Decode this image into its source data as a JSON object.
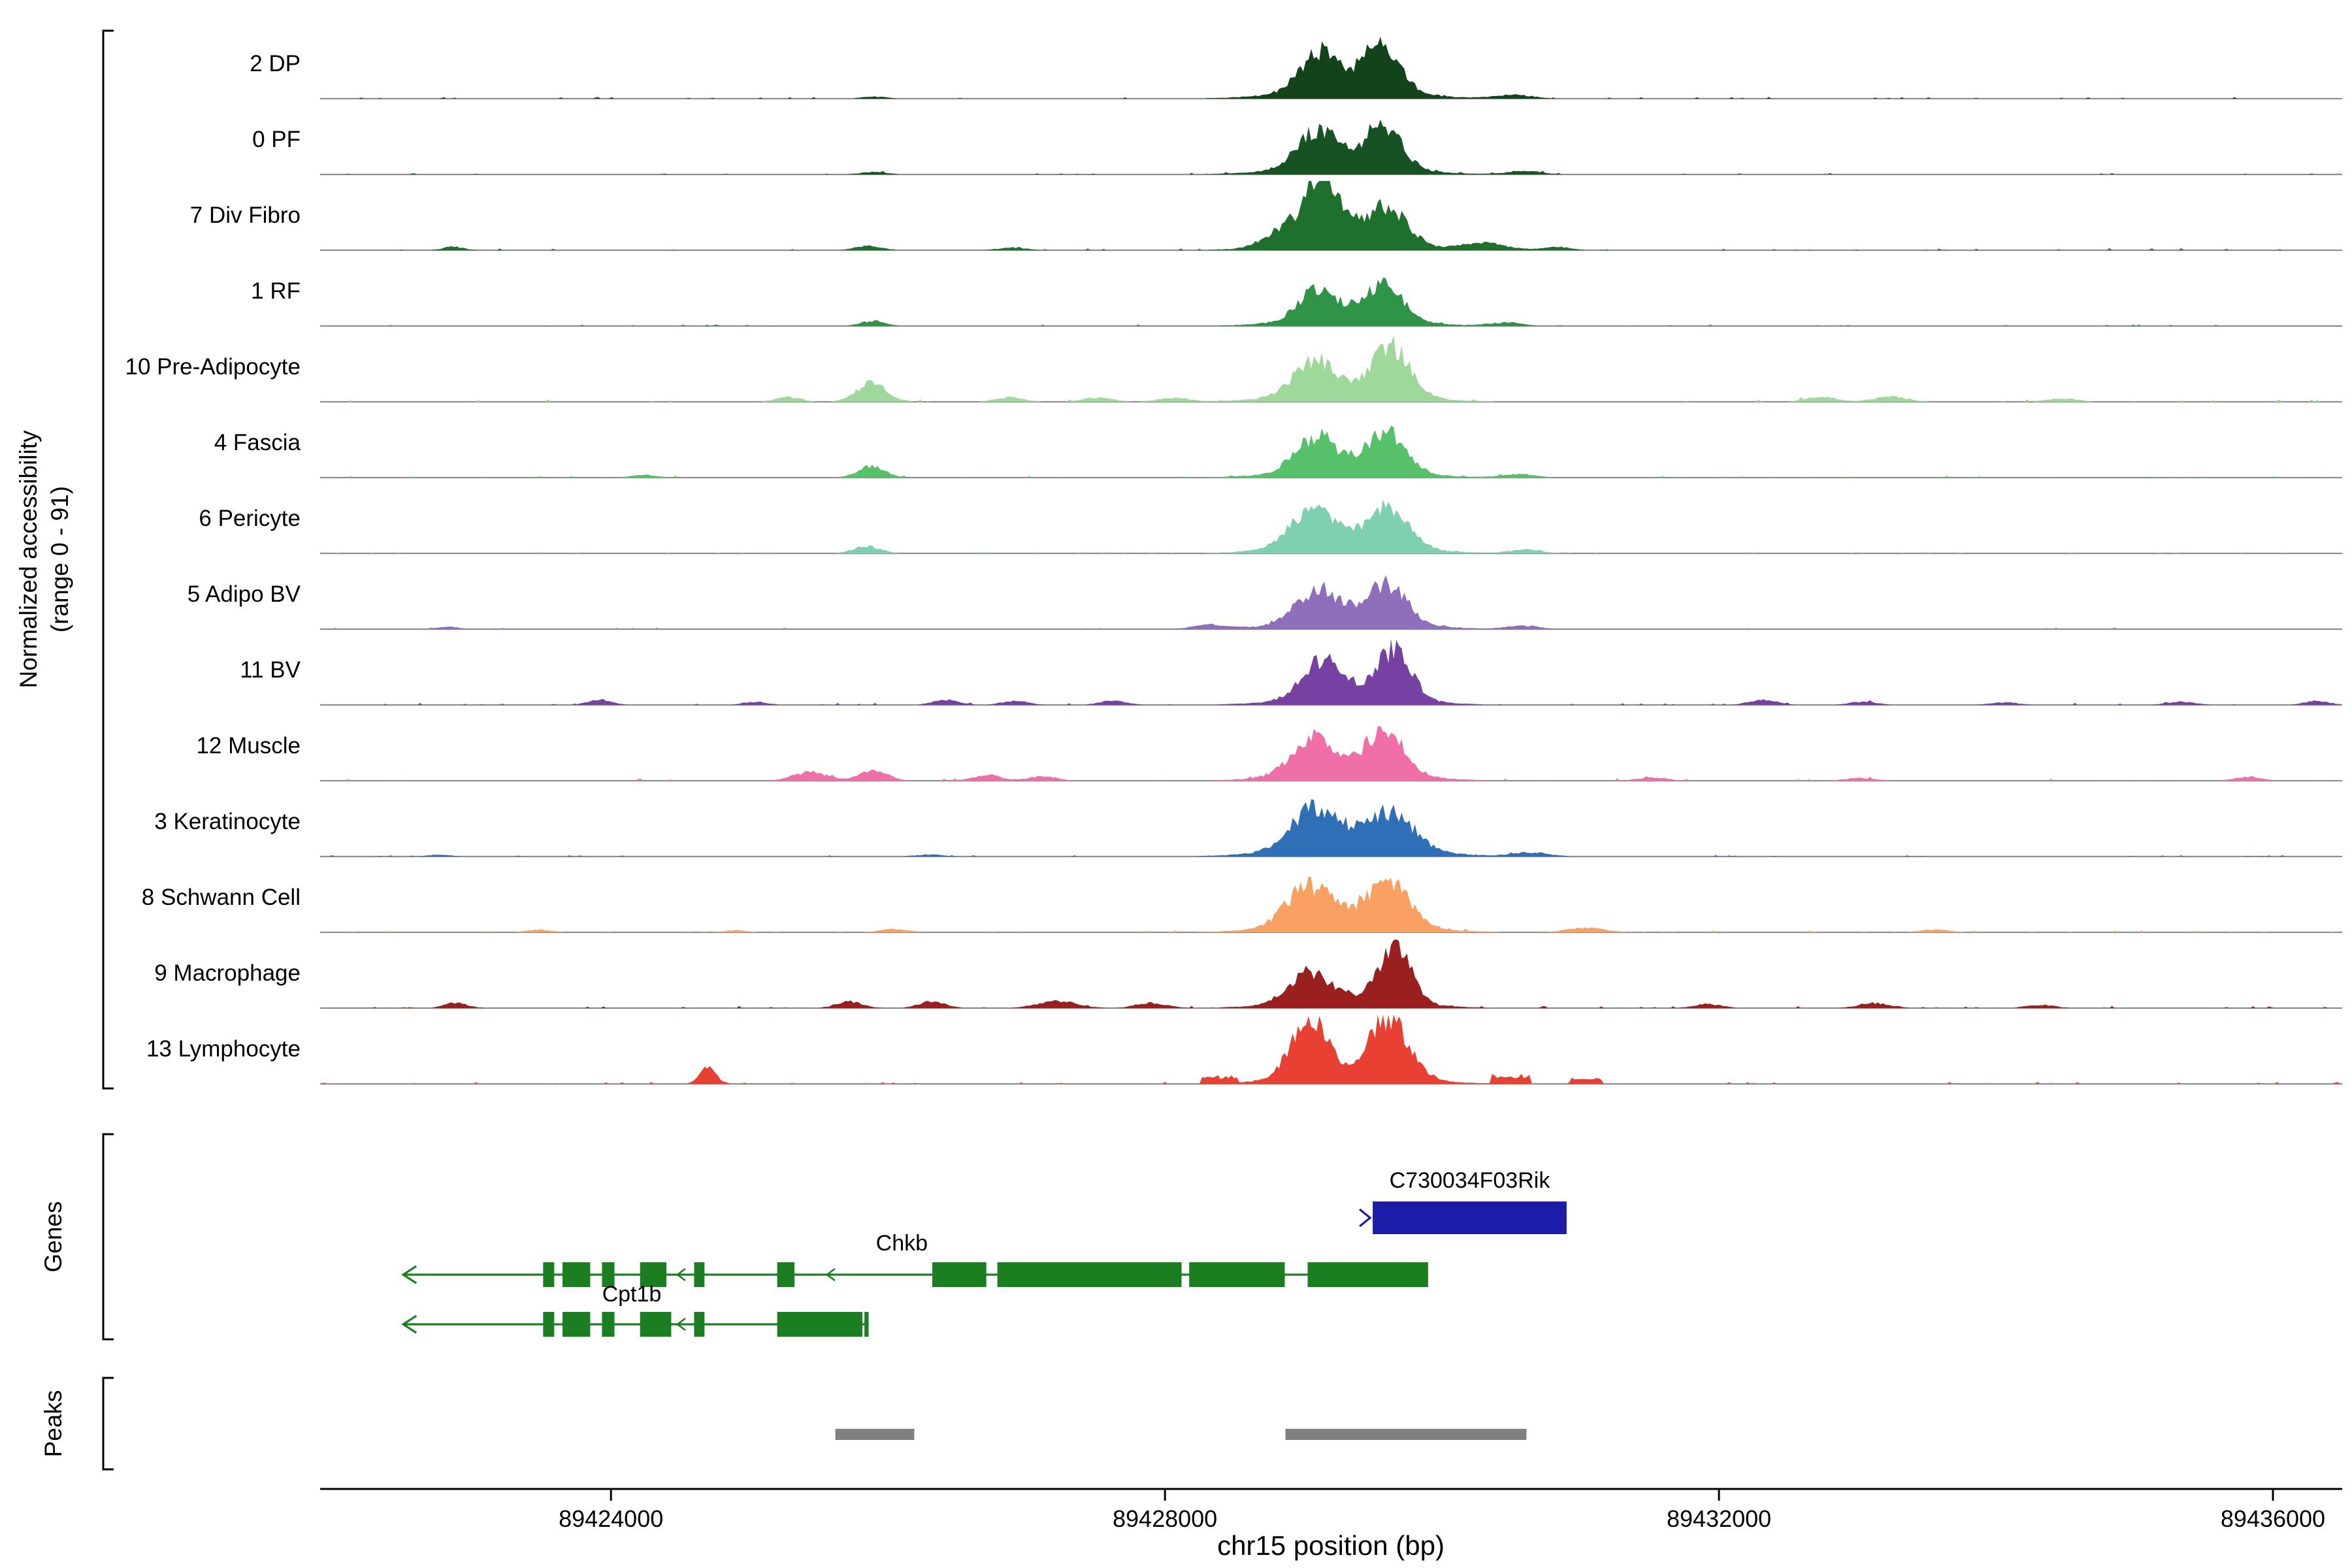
{
  "figure": {
    "y_axis_label_line1": "Normalized accessibility",
    "y_axis_label_line2": "(range 0 - 91)",
    "genes_section_label": "Genes",
    "peaks_section_label": "Peaks",
    "x_axis_title": "chr15 position (bp)"
  },
  "chart_data": {
    "type": "area",
    "title": "",
    "xlabel": "chr15 position (bp)",
    "ylabel": "Normalized accessibility (range 0 - 91)",
    "x_range_bp": [
      89421900,
      89436500
    ],
    "x_ticks_bp": [
      89424000,
      89428000,
      89432000,
      89436000
    ],
    "x_tick_labels": [
      "89424000",
      "89428000",
      "89432000",
      "89436000"
    ],
    "y_range": [
      0,
      91
    ],
    "tracks": [
      {
        "label": "2 DP",
        "color": "#12431b",
        "seed": 1,
        "noise": 0.015,
        "peaks": [
          [
            89429120,
            140,
            0.62
          ],
          [
            89429560,
            130,
            0.72
          ],
          [
            89429320,
            420,
            0.14
          ],
          [
            89430520,
            130,
            0.06
          ],
          [
            89425900,
            90,
            0.03
          ]
        ]
      },
      {
        "label": "0 PF",
        "color": "#175322",
        "seed": 2,
        "noise": 0.013,
        "peaks": [
          [
            89429100,
            140,
            0.58
          ],
          [
            89429570,
            130,
            0.68
          ],
          [
            89429320,
            420,
            0.13
          ],
          [
            89430600,
            120,
            0.05
          ],
          [
            89425900,
            90,
            0.04
          ]
        ]
      },
      {
        "label": "7 Div Fibro",
        "color": "#1f6f2d",
        "seed": 3,
        "noise": 0.018,
        "peaks": [
          [
            89429140,
            115,
            0.97
          ],
          [
            89429600,
            140,
            0.55
          ],
          [
            89428860,
            130,
            0.25
          ],
          [
            89429300,
            380,
            0.2
          ],
          [
            89430300,
            150,
            0.12
          ],
          [
            89430820,
            110,
            0.05
          ],
          [
            89422860,
            80,
            0.05
          ],
          [
            89425860,
            90,
            0.07
          ],
          [
            89426900,
            100,
            0.04
          ]
        ]
      },
      {
        "label": "1 RF",
        "color": "#2f9348",
        "seed": 4,
        "noise": 0.014,
        "peaks": [
          [
            89429110,
            140,
            0.46
          ],
          [
            89429580,
            135,
            0.55
          ],
          [
            89429330,
            400,
            0.12
          ],
          [
            89430450,
            120,
            0.05
          ],
          [
            89425890,
            85,
            0.08
          ]
        ]
      },
      {
        "label": "10 Pre-Adipocyte",
        "color": "#9fd89b",
        "seed": 5,
        "noise": 0.022,
        "peaks": [
          [
            89429080,
            150,
            0.5
          ],
          [
            89429630,
            130,
            0.74
          ],
          [
            89429340,
            420,
            0.15
          ],
          [
            89425880,
            110,
            0.28
          ],
          [
            89425280,
            90,
            0.07
          ],
          [
            89426880,
            100,
            0.07
          ],
          [
            89427520,
            110,
            0.06
          ],
          [
            89428060,
            110,
            0.06
          ],
          [
            89432740,
            110,
            0.07
          ],
          [
            89433240,
            120,
            0.08
          ],
          [
            89434480,
            110,
            0.05
          ]
        ]
      },
      {
        "label": "4 Fascia",
        "color": "#56c06a",
        "seed": 6,
        "noise": 0.015,
        "peaks": [
          [
            89429090,
            145,
            0.52
          ],
          [
            89429600,
            135,
            0.62
          ],
          [
            89429330,
            410,
            0.14
          ],
          [
            89425880,
            95,
            0.17
          ],
          [
            89424240,
            90,
            0.04
          ],
          [
            89430560,
            120,
            0.05
          ]
        ]
      },
      {
        "label": "6 Pericyte",
        "color": "#7fd0b0",
        "seed": 7,
        "noise": 0.014,
        "peaks": [
          [
            89429070,
            160,
            0.56
          ],
          [
            89429610,
            140,
            0.6
          ],
          [
            89429330,
            420,
            0.15
          ],
          [
            89425850,
            95,
            0.11
          ],
          [
            89430600,
            120,
            0.05
          ]
        ]
      },
      {
        "label": "5 Adipo BV",
        "color": "#8f6fbb",
        "seed": 8,
        "noise": 0.013,
        "peaks": [
          [
            89429100,
            150,
            0.5
          ],
          [
            89429600,
            140,
            0.58
          ],
          [
            89429340,
            420,
            0.14
          ],
          [
            89428320,
            120,
            0.06
          ],
          [
            89422820,
            80,
            0.04
          ],
          [
            89430580,
            120,
            0.05
          ]
        ]
      },
      {
        "label": "11 BV",
        "color": "#7741a3",
        "seed": 9,
        "noise": 0.02,
        "peaks": [
          [
            89429140,
            145,
            0.55
          ],
          [
            89429650,
            125,
            0.72
          ],
          [
            89429350,
            400,
            0.15
          ],
          [
            89423920,
            85,
            0.08
          ],
          [
            89425040,
            85,
            0.05
          ],
          [
            89426420,
            95,
            0.08
          ],
          [
            89426920,
            95,
            0.06
          ],
          [
            89427620,
            100,
            0.06
          ],
          [
            89432320,
            100,
            0.08
          ],
          [
            89433040,
            100,
            0.05
          ],
          [
            89434060,
            100,
            0.04
          ],
          [
            89435340,
            100,
            0.05
          ],
          [
            89436320,
            90,
            0.06
          ]
        ]
      },
      {
        "label": "12 Muscle",
        "color": "#f06fa9",
        "seed": 10,
        "noise": 0.02,
        "peaks": [
          [
            89429070,
            150,
            0.55
          ],
          [
            89429590,
            135,
            0.66
          ],
          [
            89429330,
            410,
            0.15
          ],
          [
            89425440,
            120,
            0.13
          ],
          [
            89425900,
            100,
            0.16
          ],
          [
            89426720,
            100,
            0.09
          ],
          [
            89427120,
            100,
            0.07
          ],
          [
            89431520,
            110,
            0.05
          ],
          [
            89433020,
            110,
            0.04
          ],
          [
            89435820,
            100,
            0.06
          ]
        ]
      },
      {
        "label": "3 Keratinocyte",
        "color": "#2f6fb7",
        "seed": 11,
        "noise": 0.015,
        "peaks": [
          [
            89429090,
            170,
            0.62
          ],
          [
            89429630,
            160,
            0.55
          ],
          [
            89429360,
            450,
            0.17
          ],
          [
            89430640,
            130,
            0.06
          ],
          [
            89422760,
            80,
            0.03
          ],
          [
            89426300,
            100,
            0.03
          ]
        ]
      },
      {
        "label": "8 Schwann Cell",
        "color": "#f9a163",
        "seed": 12,
        "noise": 0.017,
        "peaks": [
          [
            89429040,
            160,
            0.6
          ],
          [
            89429610,
            150,
            0.67
          ],
          [
            89429330,
            430,
            0.15
          ],
          [
            89431040,
            130,
            0.07
          ],
          [
            89423480,
            90,
            0.04
          ],
          [
            89426040,
            100,
            0.05
          ],
          [
            89433560,
            110,
            0.04
          ],
          [
            89424900,
            90,
            0.03
          ]
        ]
      },
      {
        "label": "9 Macrophage",
        "color": "#9a1f1f",
        "seed": 13,
        "noise": 0.022,
        "peaks": [
          [
            89429040,
            145,
            0.46
          ],
          [
            89429660,
            110,
            0.88
          ],
          [
            89429340,
            400,
            0.15
          ],
          [
            89422880,
            85,
            0.08
          ],
          [
            89425720,
            95,
            0.1
          ],
          [
            89426320,
            95,
            0.1
          ],
          [
            89427220,
            140,
            0.11
          ],
          [
            89427900,
            110,
            0.08
          ],
          [
            89431920,
            100,
            0.06
          ],
          [
            89433120,
            110,
            0.08
          ],
          [
            89434320,
            100,
            0.05
          ]
        ]
      },
      {
        "label": "13 Lymphocyte",
        "color": "#e84133",
        "seed": 14,
        "noise": 0.02,
        "peaks": [
          [
            89429040,
            130,
            0.82
          ],
          [
            89429620,
            140,
            0.86
          ],
          [
            89429330,
            400,
            0.18
          ],
          [
            89424700,
            60,
            0.24
          ]
        ],
        "flats": [
          [
            89428250,
            89428520,
            0.1
          ],
          [
            89430350,
            89430640,
            0.11
          ],
          [
            89430920,
            89431160,
            0.08
          ]
        ]
      }
    ],
    "genes": [
      {
        "name": "C730034F03Rik",
        "strand": "+",
        "color": "#1c1ca8",
        "row": 0,
        "span_bp": [
          89429500,
          89430900
        ],
        "exons_bp": [
          [
            89429500,
            89430900
          ]
        ],
        "label_bp": 89430200,
        "chevrons_bp": []
      },
      {
        "name": "Chkb",
        "strand": "-",
        "color": "#1b7e21",
        "row": 1,
        "span_bp": [
          89422500,
          89429900
        ],
        "exons_bp": [
          [
            89423510,
            89423590
          ],
          [
            89423650,
            89423850
          ],
          [
            89423935,
            89424025
          ],
          [
            89424210,
            89424400
          ],
          [
            89424600,
            89424675
          ],
          [
            89425200,
            89425325
          ],
          [
            89426320,
            89426710
          ],
          [
            89426790,
            89428120
          ],
          [
            89428175,
            89428865
          ],
          [
            89429030,
            89429900
          ]
        ],
        "label_bp": 89426100,
        "chevrons_bp": [
          89424480,
          89425560
        ]
      },
      {
        "name": "Cpt1b",
        "strand": "-",
        "color": "#1b7e21",
        "row": 2,
        "span_bp": [
          89422500,
          89425860
        ],
        "exons_bp": [
          [
            89423510,
            89423590
          ],
          [
            89423650,
            89423850
          ],
          [
            89423935,
            89424025
          ],
          [
            89424210,
            89424435
          ],
          [
            89424600,
            89424675
          ],
          [
            89425200,
            89425815
          ],
          [
            89425830,
            89425860
          ]
        ],
        "label_bp": 89424150,
        "chevrons_bp": [
          89424480
        ]
      }
    ],
    "peak_bars": {
      "color": "#7f7f7f",
      "intervals_bp": [
        [
          89425620,
          89426190
        ],
        [
          89428870,
          89430610
        ]
      ]
    }
  }
}
